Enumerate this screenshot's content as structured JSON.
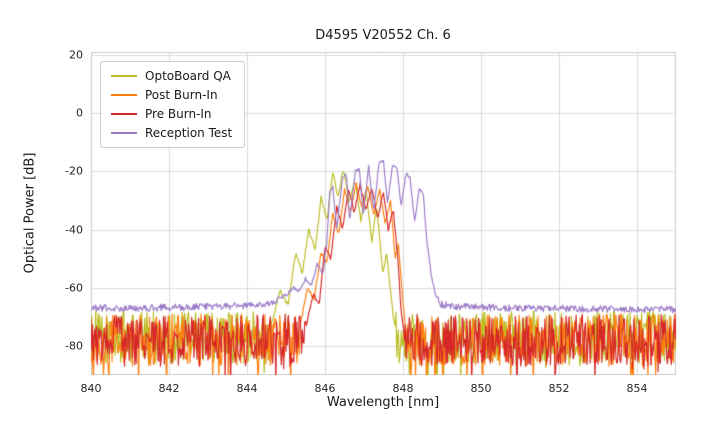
{
  "title": "D4595 V20552 Ch. 6",
  "chart_data": {
    "type": "line",
    "title": "D4595 V20552 Ch. 6",
    "xlabel": "Wavelength [nm]",
    "ylabel": "Optical Power [dB]",
    "xlim": [
      840,
      855
    ],
    "ylim": [
      -90,
      21
    ],
    "xticks": [
      840,
      842,
      844,
      846,
      848,
      850,
      852,
      854
    ],
    "yticks": [
      20,
      0,
      -20,
      -40,
      -60,
      -80
    ],
    "grid": true,
    "grid_color": "#dcdcdc",
    "border_color": "#cccccc",
    "legend_position": "upper-left",
    "series": [
      {
        "name": "OptoBoard QA",
        "color": "#bcbd22",
        "noise_floor": -77,
        "noise_amp": 9,
        "signal_points": [
          [
            844.6,
            -74
          ],
          [
            844.85,
            -61
          ],
          [
            845.05,
            -66
          ],
          [
            845.25,
            -48
          ],
          [
            845.42,
            -55
          ],
          [
            845.58,
            -40
          ],
          [
            845.75,
            -47
          ],
          [
            845.9,
            -29
          ],
          [
            846.05,
            -37
          ],
          [
            846.2,
            -20
          ],
          [
            846.33,
            -29
          ],
          [
            846.47,
            -19
          ],
          [
            846.62,
            -30
          ],
          [
            846.77,
            -23
          ],
          [
            846.92,
            -37
          ],
          [
            847.05,
            -26
          ],
          [
            847.2,
            -44
          ],
          [
            847.33,
            -32
          ],
          [
            847.48,
            -55
          ],
          [
            847.58,
            -48
          ],
          [
            847.75,
            -70
          ],
          [
            847.85,
            -77
          ]
        ]
      },
      {
        "name": "Post Burn-In",
        "color": "#ff7f0e",
        "noise_floor": -78,
        "noise_amp": 9,
        "signal_points": [
          [
            845.35,
            -74
          ],
          [
            845.55,
            -60
          ],
          [
            845.72,
            -64
          ],
          [
            845.9,
            -48
          ],
          [
            846.05,
            -52
          ],
          [
            846.2,
            -34
          ],
          [
            846.35,
            -42
          ],
          [
            846.5,
            -26
          ],
          [
            846.65,
            -34
          ],
          [
            846.8,
            -24.5
          ],
          [
            846.95,
            -33
          ],
          [
            847.1,
            -25
          ],
          [
            847.25,
            -35
          ],
          [
            847.4,
            -26.5
          ],
          [
            847.55,
            -38
          ],
          [
            847.68,
            -30
          ],
          [
            847.8,
            -50
          ],
          [
            847.88,
            -45
          ],
          [
            848.0,
            -65
          ],
          [
            848.1,
            -78
          ]
        ]
      },
      {
        "name": "Pre Burn-In",
        "color": "#d62728",
        "noise_floor": -78,
        "noise_amp": 9,
        "signal_points": [
          [
            845.5,
            -74
          ],
          [
            845.7,
            -62
          ],
          [
            845.85,
            -66
          ],
          [
            846.0,
            -46
          ],
          [
            846.15,
            -50
          ],
          [
            846.3,
            -32
          ],
          [
            846.45,
            -40
          ],
          [
            846.6,
            -26
          ],
          [
            846.75,
            -34
          ],
          [
            846.9,
            -24.5
          ],
          [
            847.05,
            -33
          ],
          [
            847.2,
            -26
          ],
          [
            847.35,
            -36
          ],
          [
            847.5,
            -27
          ],
          [
            847.62,
            -40
          ],
          [
            847.75,
            -33
          ],
          [
            847.88,
            -52
          ],
          [
            847.95,
            -68
          ],
          [
            848.05,
            -78
          ]
        ]
      },
      {
        "name": "Reception Test",
        "color": "#9b7bc8",
        "noise_floor": -67,
        "noise_amp": 1.2,
        "signal_points": [
          [
            840.0,
            -67
          ],
          [
            841.0,
            -67
          ],
          [
            842.0,
            -66.8
          ],
          [
            843.0,
            -66.5
          ],
          [
            844.0,
            -66.2
          ],
          [
            844.4,
            -65.8
          ],
          [
            844.7,
            -64.5
          ],
          [
            845.0,
            -62.5
          ],
          [
            845.2,
            -60
          ],
          [
            845.35,
            -61.5
          ],
          [
            845.5,
            -57
          ],
          [
            845.65,
            -59
          ],
          [
            845.8,
            -52
          ],
          [
            845.95,
            -55
          ],
          [
            846.05,
            -44
          ],
          [
            846.12,
            -27
          ],
          [
            846.2,
            -25
          ],
          [
            846.3,
            -40
          ],
          [
            846.45,
            -22
          ],
          [
            846.55,
            -21
          ],
          [
            846.63,
            -37
          ],
          [
            846.78,
            -20
          ],
          [
            846.88,
            -19.5
          ],
          [
            846.98,
            -35
          ],
          [
            847.12,
            -18.5
          ],
          [
            847.25,
            -34
          ],
          [
            847.38,
            -17.5
          ],
          [
            847.5,
            -16.5
          ],
          [
            847.6,
            -31
          ],
          [
            847.73,
            -18
          ],
          [
            847.85,
            -19
          ],
          [
            847.95,
            -32
          ],
          [
            848.08,
            -21
          ],
          [
            848.18,
            -22
          ],
          [
            848.3,
            -37
          ],
          [
            848.42,
            -26
          ],
          [
            848.52,
            -28
          ],
          [
            848.62,
            -45
          ],
          [
            848.72,
            -55
          ],
          [
            848.82,
            -62
          ],
          [
            848.95,
            -65.5
          ],
          [
            849.2,
            -66.3
          ],
          [
            850.0,
            -66.8
          ],
          [
            851.0,
            -67
          ],
          [
            852.0,
            -67.2
          ],
          [
            853.0,
            -67.3
          ],
          [
            854.0,
            -67.4
          ],
          [
            855.0,
            -67.6
          ]
        ]
      }
    ]
  }
}
